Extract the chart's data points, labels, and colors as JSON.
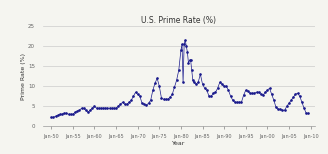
{
  "title": "U.S. Prime Rate (%)",
  "xlabel": "Year",
  "ylabel": "Prime Rate (%)",
  "line_color": "#1a1a8c",
  "marker": ".",
  "marker_size": 1.8,
  "bg_color": "#f5f5f0",
  "plot_bg": "#f5f5f0",
  "grid_color": "#cccccc",
  "xlim_start": 1948,
  "xlim_end": 2011,
  "ylim": [
    0,
    25
  ],
  "yticks": [
    0,
    5,
    10,
    15,
    20,
    25
  ],
  "xtick_labels": [
    "Jan-50",
    "Jan-55",
    "Jan-60",
    "Jan-65",
    "Jan-70",
    "Jan-75",
    "Jan-80",
    "Jan-85",
    "Jan-90",
    "Jan-95",
    "Jan-00",
    "Jan-05",
    "Jan-10"
  ],
  "xtick_years": [
    1950,
    1955,
    1960,
    1965,
    1970,
    1975,
    1980,
    1985,
    1990,
    1995,
    2000,
    2005,
    2010
  ],
  "data": [
    [
      1950.0,
      2.25
    ],
    [
      1950.5,
      2.25
    ],
    [
      1951.0,
      2.5
    ],
    [
      1951.5,
      2.75
    ],
    [
      1952.0,
      3.0
    ],
    [
      1952.5,
      3.0
    ],
    [
      1953.0,
      3.25
    ],
    [
      1953.5,
      3.25
    ],
    [
      1954.0,
      3.0
    ],
    [
      1954.5,
      3.0
    ],
    [
      1955.0,
      3.0
    ],
    [
      1955.5,
      3.5
    ],
    [
      1956.0,
      3.75
    ],
    [
      1956.5,
      4.0
    ],
    [
      1957.0,
      4.5
    ],
    [
      1957.5,
      4.5
    ],
    [
      1958.0,
      4.0
    ],
    [
      1958.5,
      3.5
    ],
    [
      1959.0,
      4.0
    ],
    [
      1959.5,
      4.5
    ],
    [
      1960.0,
      5.0
    ],
    [
      1960.5,
      4.5
    ],
    [
      1961.0,
      4.5
    ],
    [
      1961.5,
      4.5
    ],
    [
      1962.0,
      4.5
    ],
    [
      1962.5,
      4.5
    ],
    [
      1963.0,
      4.5
    ],
    [
      1963.5,
      4.5
    ],
    [
      1964.0,
      4.5
    ],
    [
      1964.5,
      4.5
    ],
    [
      1965.0,
      4.5
    ],
    [
      1965.5,
      5.0
    ],
    [
      1966.0,
      5.5
    ],
    [
      1966.5,
      6.0
    ],
    [
      1967.0,
      5.5
    ],
    [
      1967.5,
      5.5
    ],
    [
      1968.0,
      6.0
    ],
    [
      1968.5,
      6.5
    ],
    [
      1969.0,
      7.5
    ],
    [
      1969.5,
      8.5
    ],
    [
      1970.0,
      8.0
    ],
    [
      1970.5,
      7.5
    ],
    [
      1971.0,
      5.75
    ],
    [
      1971.5,
      5.5
    ],
    [
      1972.0,
      5.25
    ],
    [
      1972.5,
      5.75
    ],
    [
      1973.0,
      6.5
    ],
    [
      1973.5,
      9.0
    ],
    [
      1974.0,
      10.75
    ],
    [
      1974.5,
      12.0
    ],
    [
      1975.0,
      10.0
    ],
    [
      1975.5,
      7.0
    ],
    [
      1976.0,
      6.75
    ],
    [
      1976.5,
      6.75
    ],
    [
      1977.0,
      6.75
    ],
    [
      1977.5,
      7.25
    ],
    [
      1978.0,
      8.0
    ],
    [
      1978.5,
      9.75
    ],
    [
      1979.0,
      11.5
    ],
    [
      1979.5,
      14.0
    ],
    [
      1980.0,
      19.0
    ],
    [
      1980.25,
      20.5
    ],
    [
      1980.5,
      11.0
    ],
    [
      1980.75,
      20.5
    ],
    [
      1981.0,
      21.5
    ],
    [
      1981.25,
      20.0
    ],
    [
      1981.5,
      18.5
    ],
    [
      1981.75,
      15.75
    ],
    [
      1982.0,
      16.5
    ],
    [
      1982.25,
      16.5
    ],
    [
      1982.5,
      14.0
    ],
    [
      1982.75,
      11.5
    ],
    [
      1983.0,
      11.0
    ],
    [
      1983.5,
      10.5
    ],
    [
      1984.0,
      11.0
    ],
    [
      1984.5,
      13.0
    ],
    [
      1985.0,
      10.5
    ],
    [
      1985.5,
      9.5
    ],
    [
      1986.0,
      9.0
    ],
    [
      1986.5,
      7.5
    ],
    [
      1987.0,
      7.5
    ],
    [
      1987.5,
      8.25
    ],
    [
      1988.0,
      8.5
    ],
    [
      1988.5,
      9.5
    ],
    [
      1989.0,
      11.0
    ],
    [
      1989.5,
      10.5
    ],
    [
      1990.0,
      10.0
    ],
    [
      1990.5,
      10.0
    ],
    [
      1991.0,
      9.0
    ],
    [
      1991.5,
      7.5
    ],
    [
      1992.0,
      6.5
    ],
    [
      1992.5,
      6.0
    ],
    [
      1993.0,
      6.0
    ],
    [
      1993.5,
      6.0
    ],
    [
      1994.0,
      6.0
    ],
    [
      1994.5,
      7.75
    ],
    [
      1995.0,
      9.0
    ],
    [
      1995.5,
      8.75
    ],
    [
      1996.0,
      8.25
    ],
    [
      1996.5,
      8.25
    ],
    [
      1997.0,
      8.25
    ],
    [
      1997.5,
      8.5
    ],
    [
      1998.0,
      8.5
    ],
    [
      1998.5,
      8.0
    ],
    [
      1999.0,
      7.75
    ],
    [
      1999.5,
      8.5
    ],
    [
      2000.0,
      9.0
    ],
    [
      2000.5,
      9.5
    ],
    [
      2001.0,
      8.0
    ],
    [
      2001.5,
      6.5
    ],
    [
      2002.0,
      4.75
    ],
    [
      2002.5,
      4.25
    ],
    [
      2003.0,
      4.25
    ],
    [
      2003.5,
      4.0
    ],
    [
      2004.0,
      4.0
    ],
    [
      2004.5,
      5.0
    ],
    [
      2005.0,
      5.75
    ],
    [
      2005.5,
      6.5
    ],
    [
      2006.0,
      7.25
    ],
    [
      2006.5,
      8.0
    ],
    [
      2007.0,
      8.25
    ],
    [
      2007.5,
      7.5
    ],
    [
      2008.0,
      6.0
    ],
    [
      2008.5,
      4.5
    ],
    [
      2009.0,
      3.25
    ],
    [
      2009.5,
      3.25
    ]
  ]
}
